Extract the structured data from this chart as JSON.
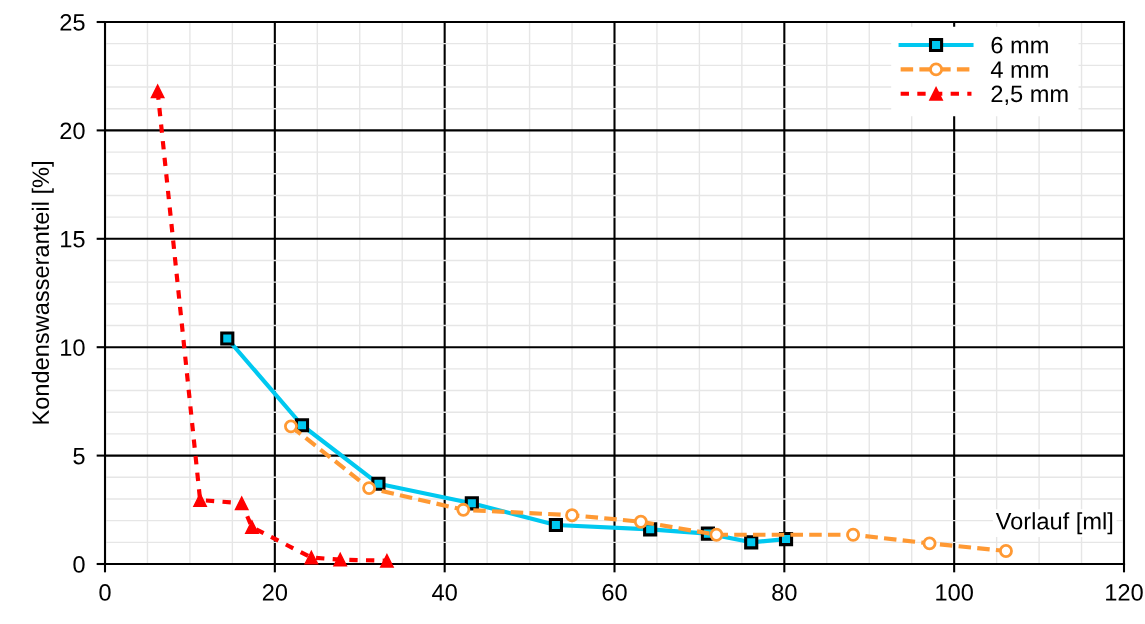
{
  "chart_data": {
    "type": "line",
    "xlabel": "Vorlauf [ml]",
    "ylabel": "Kondenswasseranteil [%]",
    "xlim": [
      0,
      120
    ],
    "xticks": [
      0,
      20,
      40,
      60,
      80,
      100,
      120
    ],
    "ylim": [
      0,
      25
    ],
    "yticks": [
      0,
      5,
      10,
      15,
      20,
      25
    ],
    "grid": true,
    "legend": "top right",
    "series": [
      {
        "name": "6 mm",
        "color": "#00c8f0",
        "marker": "square",
        "line_style": "solid",
        "x": [
          14.4,
          23.2,
          32.2,
          43.2,
          53.1,
          64.2,
          71.0,
          76.1,
          80.2
        ],
        "values": [
          10.4,
          6.4,
          3.7,
          2.8,
          1.8,
          1.6,
          1.4,
          1.0,
          1.15
        ]
      },
      {
        "name": "4 mm",
        "color": "#ff9933",
        "marker": "circle",
        "line_style": "dashed",
        "x": [
          21.9,
          31.1,
          42.2,
          55.0,
          63.1,
          72.0,
          88.1,
          97.1,
          106.1
        ],
        "values": [
          6.35,
          3.5,
          2.5,
          2.25,
          1.95,
          1.35,
          1.35,
          0.95,
          0.6
        ]
      },
      {
        "name": "2,5 mm",
        "color": "#ff0000",
        "marker": "triangle",
        "line_style": "dotted",
        "x": [
          6.2,
          11.2,
          16.1,
          17.3,
          24.3,
          27.7,
          33.2
        ],
        "values": [
          21.8,
          2.95,
          2.8,
          1.7,
          0.3,
          0.2,
          0.15
        ]
      }
    ]
  }
}
